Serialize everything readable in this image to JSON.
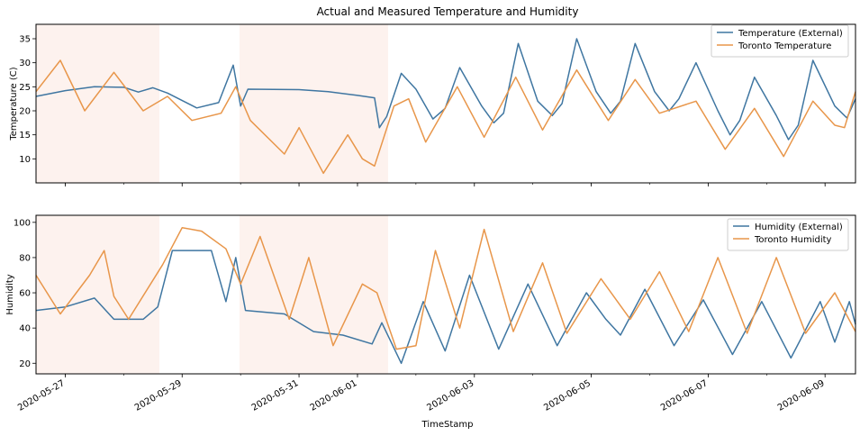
{
  "chart_data": [
    {
      "type": "line",
      "title": "Actual and Measured Temperature and Humidity",
      "xlabel": "",
      "ylabel": "Temperature (C)",
      "ylim": [
        5,
        38
      ],
      "yticks": [
        10,
        15,
        20,
        25,
        30,
        35
      ],
      "x_range": [
        "2020-05-26T12:00",
        "2020-06-09T12:30"
      ],
      "legend_position": "top-right",
      "series": [
        {
          "name": "Temperature (External)",
          "color": "#3f76a1",
          "points": [
            [
              "2020-05-26T12:00",
              23.0
            ],
            [
              "2020-05-27T00:00",
              24.2
            ],
            [
              "2020-05-27T12:00",
              25.0
            ],
            [
              "2020-05-28T00:00",
              24.9
            ],
            [
              "2020-05-28T06:00",
              23.9
            ],
            [
              "2020-05-28T12:00",
              24.8
            ],
            [
              "2020-05-28T18:00",
              23.7
            ],
            [
              "2020-05-29T06:00",
              20.6
            ],
            [
              "2020-05-29T15:00",
              21.7
            ],
            [
              "2020-05-29T21:00",
              29.5
            ],
            [
              "2020-05-30T00:00",
              21.0
            ],
            [
              "2020-05-30T03:00",
              24.5
            ],
            [
              "2020-05-31T00:00",
              24.4
            ],
            [
              "2020-05-31T12:00",
              24.0
            ],
            [
              "2020-06-01T00:00",
              23.2
            ],
            [
              "2020-06-01T07:00",
              22.7
            ],
            [
              "2020-06-01T09:00",
              16.5
            ],
            [
              "2020-06-01T12:00",
              18.8
            ],
            [
              "2020-06-01T18:00",
              27.8
            ],
            [
              "2020-06-02T00:00",
              24.5
            ],
            [
              "2020-06-02T07:00",
              18.3
            ],
            [
              "2020-06-02T12:00",
              20.5
            ],
            [
              "2020-06-02T18:00",
              29.0
            ],
            [
              "2020-06-03T03:00",
              21.0
            ],
            [
              "2020-06-03T08:00",
              17.5
            ],
            [
              "2020-06-03T12:00",
              19.5
            ],
            [
              "2020-06-03T18:00",
              34.0
            ],
            [
              "2020-06-04T02:00",
              22.0
            ],
            [
              "2020-06-04T08:00",
              19.0
            ],
            [
              "2020-06-04T12:00",
              21.5
            ],
            [
              "2020-06-04T18:00",
              35.0
            ],
            [
              "2020-06-05T02:00",
              24.0
            ],
            [
              "2020-06-05T08:00",
              19.5
            ],
            [
              "2020-06-05T12:00",
              22.0
            ],
            [
              "2020-06-05T18:00",
              34.0
            ],
            [
              "2020-06-06T02:00",
              24.0
            ],
            [
              "2020-06-06T08:00",
              20.0
            ],
            [
              "2020-06-06T12:00",
              22.5
            ],
            [
              "2020-06-06T19:00",
              30.0
            ],
            [
              "2020-06-07T04:00",
              20.0
            ],
            [
              "2020-06-07T09:00",
              15.0
            ],
            [
              "2020-06-07T13:00",
              18.0
            ],
            [
              "2020-06-07T19:00",
              27.0
            ],
            [
              "2020-06-08T04:00",
              19.0
            ],
            [
              "2020-06-08T09:00",
              14.0
            ],
            [
              "2020-06-08T13:00",
              17.0
            ],
            [
              "2020-06-08T19:00",
              30.5
            ],
            [
              "2020-06-09T04:00",
              21.0
            ],
            [
              "2020-06-09T09:00",
              18.5
            ],
            [
              "2020-06-09T12:30",
              22.5
            ]
          ]
        },
        {
          "name": "Toronto Temperature",
          "color": "#e8964a",
          "points": [
            [
              "2020-05-26T12:00",
              24.0
            ],
            [
              "2020-05-26T22:00",
              30.5
            ],
            [
              "2020-05-27T08:00",
              20.0
            ],
            [
              "2020-05-27T20:00",
              28.0
            ],
            [
              "2020-05-28T08:00",
              20.0
            ],
            [
              "2020-05-28T18:00",
              23.0
            ],
            [
              "2020-05-29T04:00",
              18.0
            ],
            [
              "2020-05-29T16:00",
              19.5
            ],
            [
              "2020-05-29T22:00",
              25.0
            ],
            [
              "2020-05-30T04:00",
              18.0
            ],
            [
              "2020-05-30T18:00",
              11.0
            ],
            [
              "2020-05-31T00:00",
              16.5
            ],
            [
              "2020-05-31T10:00",
              7.0
            ],
            [
              "2020-05-31T20:00",
              15.0
            ],
            [
              "2020-06-01T02:00",
              10.0
            ],
            [
              "2020-06-01T07:00",
              8.5
            ],
            [
              "2020-06-01T15:00",
              21.0
            ],
            [
              "2020-06-01T21:00",
              22.5
            ],
            [
              "2020-06-02T04:00",
              13.5
            ],
            [
              "2020-06-02T17:00",
              25.0
            ],
            [
              "2020-06-03T04:00",
              14.5
            ],
            [
              "2020-06-03T17:00",
              27.0
            ],
            [
              "2020-06-04T04:00",
              16.0
            ],
            [
              "2020-06-04T18:00",
              28.5
            ],
            [
              "2020-06-05T02:00",
              22.0
            ],
            [
              "2020-06-05T07:00",
              18.0
            ],
            [
              "2020-06-05T18:00",
              26.5
            ],
            [
              "2020-06-06T04:00",
              19.5
            ],
            [
              "2020-06-06T19:00",
              22.0
            ],
            [
              "2020-06-07T07:00",
              12.0
            ],
            [
              "2020-06-07T19:00",
              20.5
            ],
            [
              "2020-06-08T07:00",
              10.5
            ],
            [
              "2020-06-08T19:00",
              22.0
            ],
            [
              "2020-06-09T04:00",
              17.0
            ],
            [
              "2020-06-09T08:00",
              16.5
            ],
            [
              "2020-06-09T12:30",
              24.0
            ]
          ]
        }
      ]
    },
    {
      "type": "line",
      "title": "",
      "xlabel": "TimeStamp",
      "ylabel": "Humidity",
      "ylim": [
        14,
        104
      ],
      "yticks": [
        20,
        40,
        60,
        80,
        100
      ],
      "x_range": [
        "2020-05-26T12:00",
        "2020-06-09T12:30"
      ],
      "xticks": [
        "2020-05-27",
        "2020-05-29",
        "2020-05-31",
        "2020-06-01",
        "2020-06-03",
        "2020-06-05",
        "2020-06-07",
        "2020-06-09"
      ],
      "legend_position": "top-right",
      "series": [
        {
          "name": "Humidity (External)",
          "color": "#3f76a1",
          "points": [
            [
              "2020-05-26T12:00",
              50.0
            ],
            [
              "2020-05-27T00:00",
              52.0
            ],
            [
              "2020-05-27T12:00",
              57.0
            ],
            [
              "2020-05-27T20:00",
              45.0
            ],
            [
              "2020-05-28T08:00",
              45.0
            ],
            [
              "2020-05-28T14:00",
              52.0
            ],
            [
              "2020-05-28T20:00",
              84.0
            ],
            [
              "2020-05-29T12:00",
              84.0
            ],
            [
              "2020-05-29T18:00",
              55.0
            ],
            [
              "2020-05-29T22:00",
              80.0
            ],
            [
              "2020-05-30T02:00",
              50.0
            ],
            [
              "2020-05-30T18:00",
              48.0
            ],
            [
              "2020-05-31T06:00",
              38.0
            ],
            [
              "2020-05-31T18:00",
              36.0
            ],
            [
              "2020-06-01T06:00",
              31.0
            ],
            [
              "2020-06-01T10:00",
              43.0
            ],
            [
              "2020-06-01T18:00",
              20.0
            ],
            [
              "2020-06-02T03:00",
              55.0
            ],
            [
              "2020-06-02T12:00",
              27.0
            ],
            [
              "2020-06-02T22:00",
              70.0
            ],
            [
              "2020-06-03T10:00",
              28.0
            ],
            [
              "2020-06-03T22:00",
              65.0
            ],
            [
              "2020-06-04T10:00",
              30.0
            ],
            [
              "2020-06-04T22:00",
              60.0
            ],
            [
              "2020-06-05T06:00",
              45.0
            ],
            [
              "2020-06-05T12:00",
              36.0
            ],
            [
              "2020-06-05T22:00",
              62.0
            ],
            [
              "2020-06-06T10:00",
              30.0
            ],
            [
              "2020-06-06T22:00",
              56.0
            ],
            [
              "2020-06-07T10:00",
              25.0
            ],
            [
              "2020-06-07T22:00",
              55.0
            ],
            [
              "2020-06-08T10:00",
              23.0
            ],
            [
              "2020-06-08T22:00",
              55.0
            ],
            [
              "2020-06-09T04:00",
              32.0
            ],
            [
              "2020-06-09T10:00",
              55.0
            ],
            [
              "2020-06-09T12:30",
              42.0
            ]
          ]
        },
        {
          "name": "Toronto Humidity",
          "color": "#e8964a",
          "points": [
            [
              "2020-05-26T12:00",
              70.0
            ],
            [
              "2020-05-26T22:00",
              48.0
            ],
            [
              "2020-05-27T10:00",
              70.0
            ],
            [
              "2020-05-27T16:00",
              84.0
            ],
            [
              "2020-05-27T20:00",
              58.0
            ],
            [
              "2020-05-28T02:00",
              45.0
            ],
            [
              "2020-05-28T16:00",
              76.0
            ],
            [
              "2020-05-29T00:00",
              97.0
            ],
            [
              "2020-05-29T08:00",
              95.0
            ],
            [
              "2020-05-29T18:00",
              85.0
            ],
            [
              "2020-05-30T00:00",
              65.0
            ],
            [
              "2020-05-30T08:00",
              92.0
            ],
            [
              "2020-05-30T20:00",
              45.0
            ],
            [
              "2020-05-31T04:00",
              80.0
            ],
            [
              "2020-05-31T14:00",
              30.0
            ],
            [
              "2020-06-01T02:00",
              65.0
            ],
            [
              "2020-06-01T08:00",
              60.0
            ],
            [
              "2020-06-01T16:00",
              28.0
            ],
            [
              "2020-06-02T00:00",
              30.0
            ],
            [
              "2020-06-02T08:00",
              84.0
            ],
            [
              "2020-06-02T18:00",
              40.0
            ],
            [
              "2020-06-03T04:00",
              96.0
            ],
            [
              "2020-06-03T16:00",
              38.0
            ],
            [
              "2020-06-04T04:00",
              77.0
            ],
            [
              "2020-06-04T14:00",
              37.0
            ],
            [
              "2020-06-05T04:00",
              68.0
            ],
            [
              "2020-06-05T16:00",
              45.0
            ],
            [
              "2020-06-06T04:00",
              72.0
            ],
            [
              "2020-06-06T16:00",
              38.0
            ],
            [
              "2020-06-07T04:00",
              80.0
            ],
            [
              "2020-06-07T16:00",
              37.0
            ],
            [
              "2020-06-08T04:00",
              80.0
            ],
            [
              "2020-06-08T16:00",
              37.0
            ],
            [
              "2020-06-09T04:00",
              60.0
            ],
            [
              "2020-06-09T12:30",
              38.0
            ]
          ]
        }
      ]
    }
  ],
  "colors": {
    "external": "#3f76a1",
    "toronto": "#e8964a",
    "shade": "#fdf2ee"
  }
}
